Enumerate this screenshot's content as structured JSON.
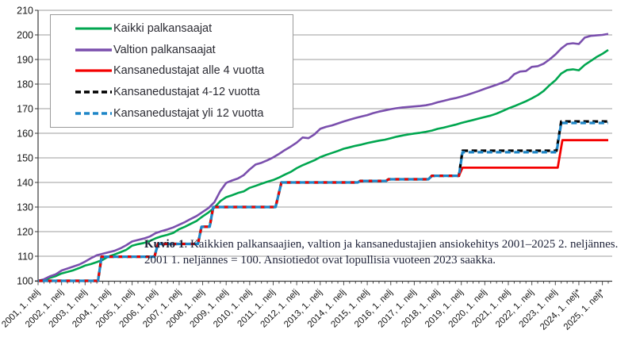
{
  "figure": {
    "background": "#ffffff"
  },
  "caption": {
    "label": "Kuvio 1",
    "line1_rest": ". Kaikkien palkansaajien, valtion ja kansanedustajien ansiokehitys 2001–2025 2. neljännes.",
    "line2": "2001 1. neljännes = 100. Ansiotiedot ovat lopullisia vuoteen 2023 saakka."
  },
  "chart_data": {
    "type": "line",
    "title": "",
    "xlabel": "",
    "ylabel": "",
    "index_note": "2001 1. neljännes = 100",
    "ylim": [
      100,
      210
    ],
    "y_ticks": [
      100,
      110,
      120,
      130,
      140,
      150,
      160,
      170,
      180,
      190,
      200,
      210
    ],
    "x_range_years": [
      2001.0,
      2025.25
    ],
    "x_tick_labels": [
      "2001, 1. nelj",
      "2002, 1. nelj",
      "2003, 1. nelj",
      "2004, 1. nelj",
      "2005, 1. nelj",
      "2006, 1. nelj",
      "2007, 1. nelj",
      "2008, 1. nelj",
      "2009, 1. nelj",
      "2010, 1. nelj",
      "2011, 1. nelj",
      "2012, 1. nelj",
      "2013, 1. nelj",
      "2014, 1. nelj",
      "2015, 1. nelj",
      "2016, 1. nelj",
      "2017, 1. nelj",
      "2018, 1. nelj",
      "2019, 1. nelj",
      "2020, 1. nelj",
      "2021, 1. nelj",
      "2022, 1. nelj",
      "2023, 1. nelj",
      "2024, 1. nelj*",
      "2025, 1. nelj*"
    ],
    "grid": "horizontal",
    "legend_position": "top-left-inside",
    "colors": {
      "grid": "#9c9c9c",
      "axis": "#3a3a3a",
      "tick_text": "#141414"
    },
    "series": [
      {
        "name": "Kaikki palkansaajat",
        "color": "#00a64f",
        "style": "solid",
        "width": 2.6,
        "points": [
          [
            2001,
            100
          ],
          [
            2001.25,
            100.3
          ],
          [
            2001.5,
            101.2
          ],
          [
            2001.75,
            101.9
          ],
          [
            2002,
            103
          ],
          [
            2002.25,
            103.6
          ],
          [
            2002.5,
            104.3
          ],
          [
            2002.75,
            105.2
          ],
          [
            2003,
            106.2
          ],
          [
            2003.25,
            106.8
          ],
          [
            2003.5,
            107.6
          ],
          [
            2003.75,
            108.5
          ],
          [
            2004,
            109.9
          ],
          [
            2004.25,
            110.7
          ],
          [
            2004.5,
            111.6
          ],
          [
            2004.75,
            112.6
          ],
          [
            2005,
            114.3
          ],
          [
            2005.25,
            114.9
          ],
          [
            2005.5,
            115.4
          ],
          [
            2005.75,
            116.2
          ],
          [
            2006,
            117.3
          ],
          [
            2006.25,
            118.1
          ],
          [
            2006.5,
            118.7
          ],
          [
            2006.75,
            119.5
          ],
          [
            2007,
            121
          ],
          [
            2007.25,
            122
          ],
          [
            2007.5,
            123.2
          ],
          [
            2007.75,
            124.4
          ],
          [
            2008,
            126.2
          ],
          [
            2008.25,
            127.8
          ],
          [
            2008.5,
            129.8
          ],
          [
            2008.75,
            132.4
          ],
          [
            2009,
            134
          ],
          [
            2009.25,
            134.8
          ],
          [
            2009.5,
            135.7
          ],
          [
            2009.75,
            136.4
          ],
          [
            2010,
            137.8
          ],
          [
            2010.25,
            138.6
          ],
          [
            2010.5,
            139.5
          ],
          [
            2010.75,
            140.3
          ],
          [
            2011,
            141
          ],
          [
            2011.25,
            142
          ],
          [
            2011.5,
            143.2
          ],
          [
            2011.75,
            144.3
          ],
          [
            2012,
            145.8
          ],
          [
            2012.25,
            147
          ],
          [
            2012.5,
            148
          ],
          [
            2012.75,
            149
          ],
          [
            2013,
            150.3
          ],
          [
            2013.25,
            151.2
          ],
          [
            2013.5,
            152
          ],
          [
            2013.75,
            152.8
          ],
          [
            2014,
            153.7
          ],
          [
            2014.25,
            154.3
          ],
          [
            2014.5,
            154.9
          ],
          [
            2014.75,
            155.4
          ],
          [
            2015,
            156
          ],
          [
            2015.25,
            156.5
          ],
          [
            2015.5,
            157
          ],
          [
            2015.75,
            157.4
          ],
          [
            2016,
            158
          ],
          [
            2016.25,
            158.6
          ],
          [
            2016.5,
            159.1
          ],
          [
            2016.75,
            159.5
          ],
          [
            2017,
            159.9
          ],
          [
            2017.25,
            160.2
          ],
          [
            2017.5,
            160.6
          ],
          [
            2017.75,
            161.1
          ],
          [
            2018,
            161.8
          ],
          [
            2018.25,
            162.3
          ],
          [
            2018.5,
            162.9
          ],
          [
            2018.75,
            163.5
          ],
          [
            2019,
            164.2
          ],
          [
            2019.25,
            164.8
          ],
          [
            2019.5,
            165.4
          ],
          [
            2019.75,
            166
          ],
          [
            2020,
            166.6
          ],
          [
            2020.25,
            167.2
          ],
          [
            2020.5,
            168
          ],
          [
            2020.75,
            169
          ],
          [
            2021,
            170.1
          ],
          [
            2021.25,
            171
          ],
          [
            2021.5,
            172
          ],
          [
            2021.75,
            173
          ],
          [
            2022,
            174.2
          ],
          [
            2022.25,
            175.5
          ],
          [
            2022.5,
            177.2
          ],
          [
            2022.75,
            179.5
          ],
          [
            2023,
            181.5
          ],
          [
            2023.25,
            184.3
          ],
          [
            2023.5,
            185.7
          ],
          [
            2023.75,
            186
          ],
          [
            2024,
            185.6
          ],
          [
            2024.25,
            187.8
          ],
          [
            2024.5,
            189.4
          ],
          [
            2024.75,
            191
          ],
          [
            2025,
            192.3
          ],
          [
            2025.25,
            193.9
          ]
        ]
      },
      {
        "name": "Valtion palkansaajat",
        "color": "#7a4fad",
        "style": "solid",
        "width": 2.6,
        "points": [
          [
            2001,
            100
          ],
          [
            2001.25,
            100.6
          ],
          [
            2001.5,
            101.8
          ],
          [
            2001.75,
            102.6
          ],
          [
            2002,
            104.2
          ],
          [
            2002.25,
            105
          ],
          [
            2002.5,
            105.8
          ],
          [
            2002.75,
            106.6
          ],
          [
            2003,
            107.8
          ],
          [
            2003.25,
            109.2
          ],
          [
            2003.5,
            110.4
          ],
          [
            2003.75,
            111
          ],
          [
            2004,
            111.6
          ],
          [
            2004.25,
            112.2
          ],
          [
            2004.5,
            113.2
          ],
          [
            2004.75,
            114.5
          ],
          [
            2005,
            116
          ],
          [
            2005.25,
            116.6
          ],
          [
            2005.5,
            117.2
          ],
          [
            2005.75,
            118
          ],
          [
            2006,
            119.4
          ],
          [
            2006.25,
            120.2
          ],
          [
            2006.5,
            120.9
          ],
          [
            2006.75,
            121.7
          ],
          [
            2007,
            122.8
          ],
          [
            2007.25,
            123.9
          ],
          [
            2007.5,
            125.2
          ],
          [
            2007.75,
            126.4
          ],
          [
            2008,
            128
          ],
          [
            2008.25,
            129.6
          ],
          [
            2008.5,
            132
          ],
          [
            2008.75,
            136.5
          ],
          [
            2009,
            139.8
          ],
          [
            2009.25,
            140.8
          ],
          [
            2009.5,
            141.6
          ],
          [
            2009.75,
            143
          ],
          [
            2010,
            145.3
          ],
          [
            2010.25,
            147.3
          ],
          [
            2010.5,
            148
          ],
          [
            2010.75,
            149
          ],
          [
            2011,
            150.2
          ],
          [
            2011.25,
            151.6
          ],
          [
            2011.5,
            153.2
          ],
          [
            2011.75,
            154.6
          ],
          [
            2012,
            156.2
          ],
          [
            2012.25,
            158.3
          ],
          [
            2012.5,
            158
          ],
          [
            2012.75,
            159.5
          ],
          [
            2013,
            161.8
          ],
          [
            2013.25,
            162.6
          ],
          [
            2013.5,
            163.2
          ],
          [
            2013.75,
            164
          ],
          [
            2014,
            164.8
          ],
          [
            2014.25,
            165.5
          ],
          [
            2014.5,
            166.2
          ],
          [
            2014.75,
            166.8
          ],
          [
            2015,
            167.4
          ],
          [
            2015.25,
            168.2
          ],
          [
            2015.5,
            168.8
          ],
          [
            2015.75,
            169.3
          ],
          [
            2016,
            169.8
          ],
          [
            2016.25,
            170.2
          ],
          [
            2016.5,
            170.5
          ],
          [
            2016.75,
            170.7
          ],
          [
            2017,
            170.9
          ],
          [
            2017.25,
            171.1
          ],
          [
            2017.5,
            171.4
          ],
          [
            2017.75,
            171.9
          ],
          [
            2018,
            172.6
          ],
          [
            2018.25,
            173.2
          ],
          [
            2018.5,
            173.8
          ],
          [
            2018.75,
            174.3
          ],
          [
            2019,
            174.9
          ],
          [
            2019.25,
            175.6
          ],
          [
            2019.5,
            176.4
          ],
          [
            2019.75,
            177.2
          ],
          [
            2020,
            178.1
          ],
          [
            2020.25,
            178.9
          ],
          [
            2020.5,
            179.7
          ],
          [
            2020.75,
            180.6
          ],
          [
            2021,
            181.6
          ],
          [
            2021.25,
            184
          ],
          [
            2021.5,
            185.1
          ],
          [
            2021.75,
            185.3
          ],
          [
            2022,
            187
          ],
          [
            2022.25,
            187.3
          ],
          [
            2022.5,
            188.3
          ],
          [
            2022.75,
            190
          ],
          [
            2023,
            192
          ],
          [
            2023.25,
            194.5
          ],
          [
            2023.5,
            196.3
          ],
          [
            2023.75,
            196.6
          ],
          [
            2024,
            196.3
          ],
          [
            2024.25,
            198.9
          ],
          [
            2024.5,
            199.6
          ],
          [
            2024.75,
            199.8
          ],
          [
            2025,
            200
          ],
          [
            2025.25,
            200.4
          ]
        ]
      },
      {
        "name": "Kansanedustajat alle 4 vuotta",
        "color": "#f40000",
        "style": "solid",
        "width": 2.8,
        "points": [
          [
            2001,
            100
          ],
          [
            2003.55,
            100
          ],
          [
            2003.7,
            109.8
          ],
          [
            2005.95,
            109.8
          ],
          [
            2006.1,
            115
          ],
          [
            2007.8,
            115
          ],
          [
            2007.95,
            122
          ],
          [
            2008.3,
            122
          ],
          [
            2008.45,
            130
          ],
          [
            2011.1,
            130
          ],
          [
            2011.35,
            140
          ],
          [
            2014.6,
            140
          ],
          [
            2014.7,
            140.6
          ],
          [
            2015.8,
            140.6
          ],
          [
            2015.9,
            141.3
          ],
          [
            2017.6,
            141.3
          ],
          [
            2017.75,
            142.7
          ],
          [
            2018.9,
            142.7
          ],
          [
            2019.05,
            146
          ],
          [
            2023.1,
            146
          ],
          [
            2023.3,
            157.2
          ],
          [
            2025.25,
            157.2
          ]
        ]
      },
      {
        "name": "Kansanedustajat 4-12 vuotta",
        "color": "#000000",
        "style": "dashed",
        "width": 3.2,
        "points": [
          [
            2001,
            100
          ],
          [
            2003.55,
            100
          ],
          [
            2003.7,
            109.8
          ],
          [
            2005.95,
            109.8
          ],
          [
            2006.1,
            115
          ],
          [
            2007.8,
            115
          ],
          [
            2007.95,
            122
          ],
          [
            2008.3,
            122
          ],
          [
            2008.45,
            130
          ],
          [
            2011.1,
            130
          ],
          [
            2011.35,
            140
          ],
          [
            2014.6,
            140
          ],
          [
            2014.7,
            140.6
          ],
          [
            2015.8,
            140.6
          ],
          [
            2015.9,
            141.3
          ],
          [
            2017.6,
            141.3
          ],
          [
            2017.75,
            142.7
          ],
          [
            2018.9,
            142.7
          ],
          [
            2019.05,
            152.9
          ],
          [
            2023.05,
            152.9
          ],
          [
            2023.25,
            164.8
          ],
          [
            2025.25,
            164.8
          ]
        ]
      },
      {
        "name": "Kansanedustajat yli 12 vuotta",
        "color": "#1e86c7",
        "style": "dashed",
        "width": 3.2,
        "points": [
          [
            2001,
            100
          ],
          [
            2003.55,
            100
          ],
          [
            2003.7,
            109.8
          ],
          [
            2005.95,
            109.8
          ],
          [
            2006.1,
            115
          ],
          [
            2007.8,
            115
          ],
          [
            2007.95,
            122
          ],
          [
            2008.3,
            122
          ],
          [
            2008.45,
            130
          ],
          [
            2011.1,
            130
          ],
          [
            2011.35,
            140
          ],
          [
            2014.6,
            140
          ],
          [
            2014.7,
            140.6
          ],
          [
            2015.8,
            140.6
          ],
          [
            2015.9,
            141.3
          ],
          [
            2017.6,
            141.3
          ],
          [
            2017.75,
            142.7
          ],
          [
            2018.9,
            142.7
          ],
          [
            2019.05,
            152.3
          ],
          [
            2023.05,
            152.3
          ],
          [
            2023.25,
            164.2
          ],
          [
            2025.25,
            164.2
          ]
        ]
      }
    ]
  }
}
